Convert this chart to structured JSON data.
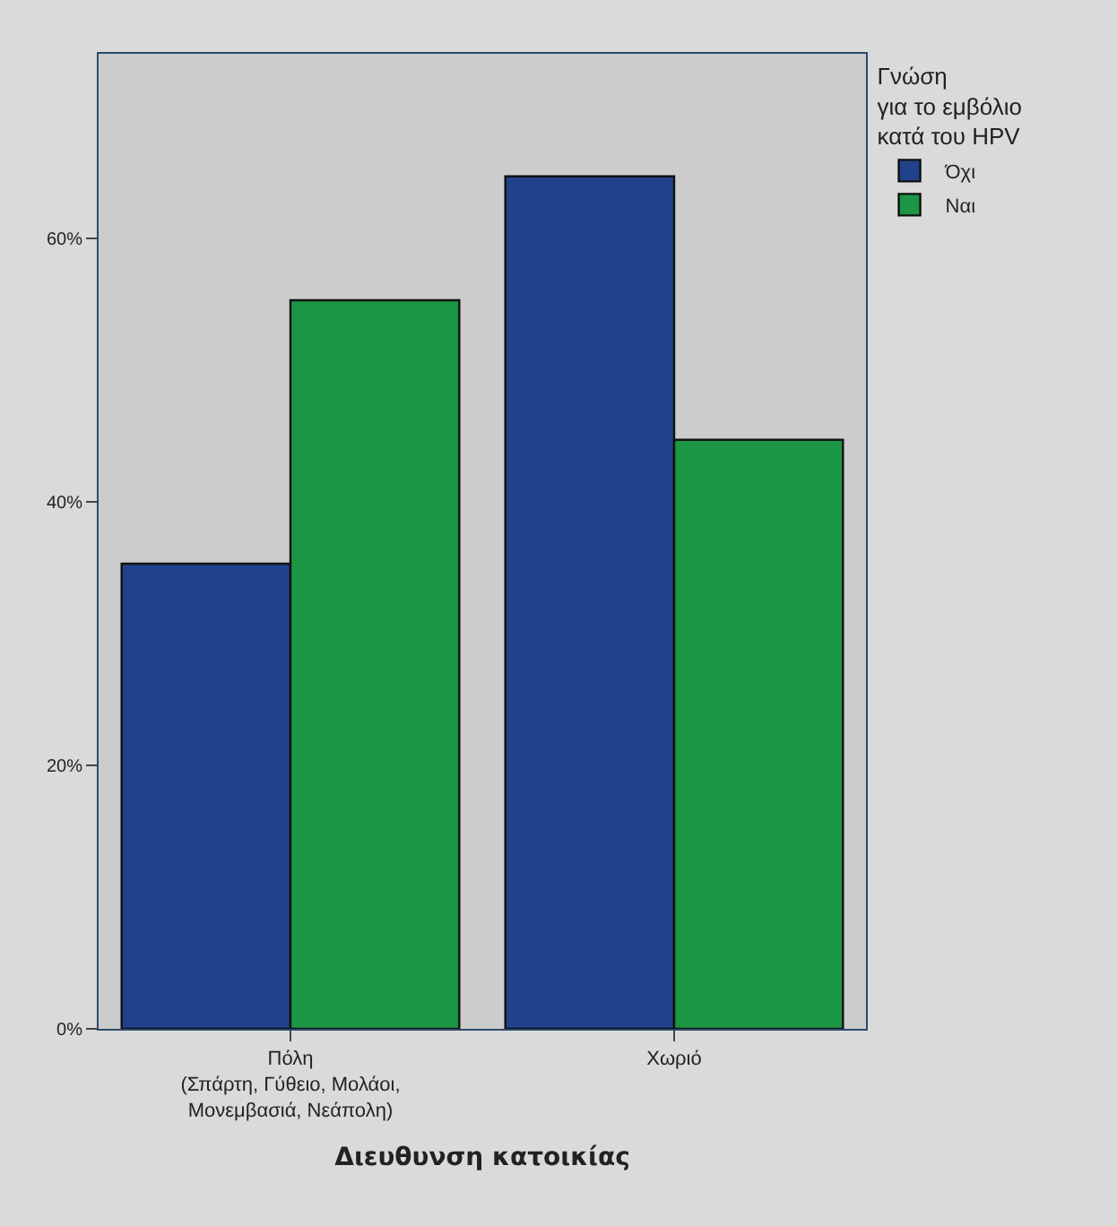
{
  "chart_data": {
    "type": "bar",
    "xlabel": "Διευθυνση κατοικίας",
    "legend_title": "Γνώση\nγια το εμβόλιο\nκατά του HPV",
    "categories": [
      "Πόλη\n(Σπάρτη, Γύθειο, Μολάοι,\nΜονεμβασιά, Νεάπολη)",
      "Χωριό"
    ],
    "series": [
      {
        "name": "Όχι",
        "color": "#21418a",
        "values": [
          35.3,
          64.7
        ]
      },
      {
        "name": "Ναι",
        "color": "#1b9644",
        "values": [
          55.3,
          44.7
        ]
      }
    ],
    "ylim": [
      0,
      74
    ],
    "yticks": [
      {
        "value": 0,
        "label": "0%"
      },
      {
        "value": 20,
        "label": "20%"
      },
      {
        "value": 40,
        "label": "40%"
      },
      {
        "value": 60,
        "label": "60%"
      }
    ],
    "grid": false,
    "legend": "top right"
  }
}
